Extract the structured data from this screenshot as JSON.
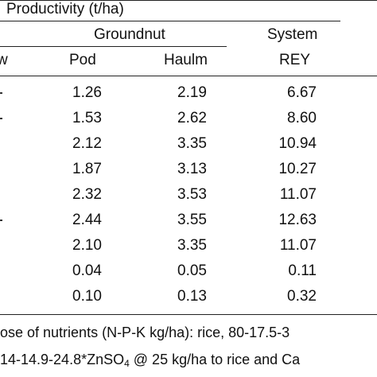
{
  "table": {
    "header": {
      "group": "Productivity (t/ha)",
      "groundnut": "Groundnut",
      "system": "System",
      "left_cut": "w",
      "col_pod": "Pod",
      "col_haulm": "Haulm",
      "col_rey": "REY"
    },
    "rows": [
      {
        "pod": "1.26",
        "haulm": "2.19",
        "rey": "6.67"
      },
      {
        "pod": "1.53",
        "haulm": "2.62",
        "rey": "8.60"
      },
      {
        "pod": "2.12",
        "haulm": "3.35",
        "rey": "10.94"
      },
      {
        "pod": "1.87",
        "haulm": "3.13",
        "rey": "10.27"
      },
      {
        "pod": "2.32",
        "haulm": "3.53",
        "rey": "11.07"
      },
      {
        "pod": "2.44",
        "haulm": "3.55",
        "rey": "12.63"
      },
      {
        "pod": "2.10",
        "haulm": "3.35",
        "rey": "11.07"
      },
      {
        "pod": "0.04",
        "haulm": "0.05",
        "rey": "0.11"
      },
      {
        "pod": "0.10",
        "haulm": "0.13",
        "rey": "0.32"
      }
    ],
    "footnote_1": "ose of nutrients (N-P-K kg/ha): rice, 80-17.5-3",
    "footnote_2_a": "14-14.9-24.8*ZnSO",
    "footnote_2_sub": "4",
    "footnote_2_b": " @ 25 kg/ha to rice and Ca"
  }
}
